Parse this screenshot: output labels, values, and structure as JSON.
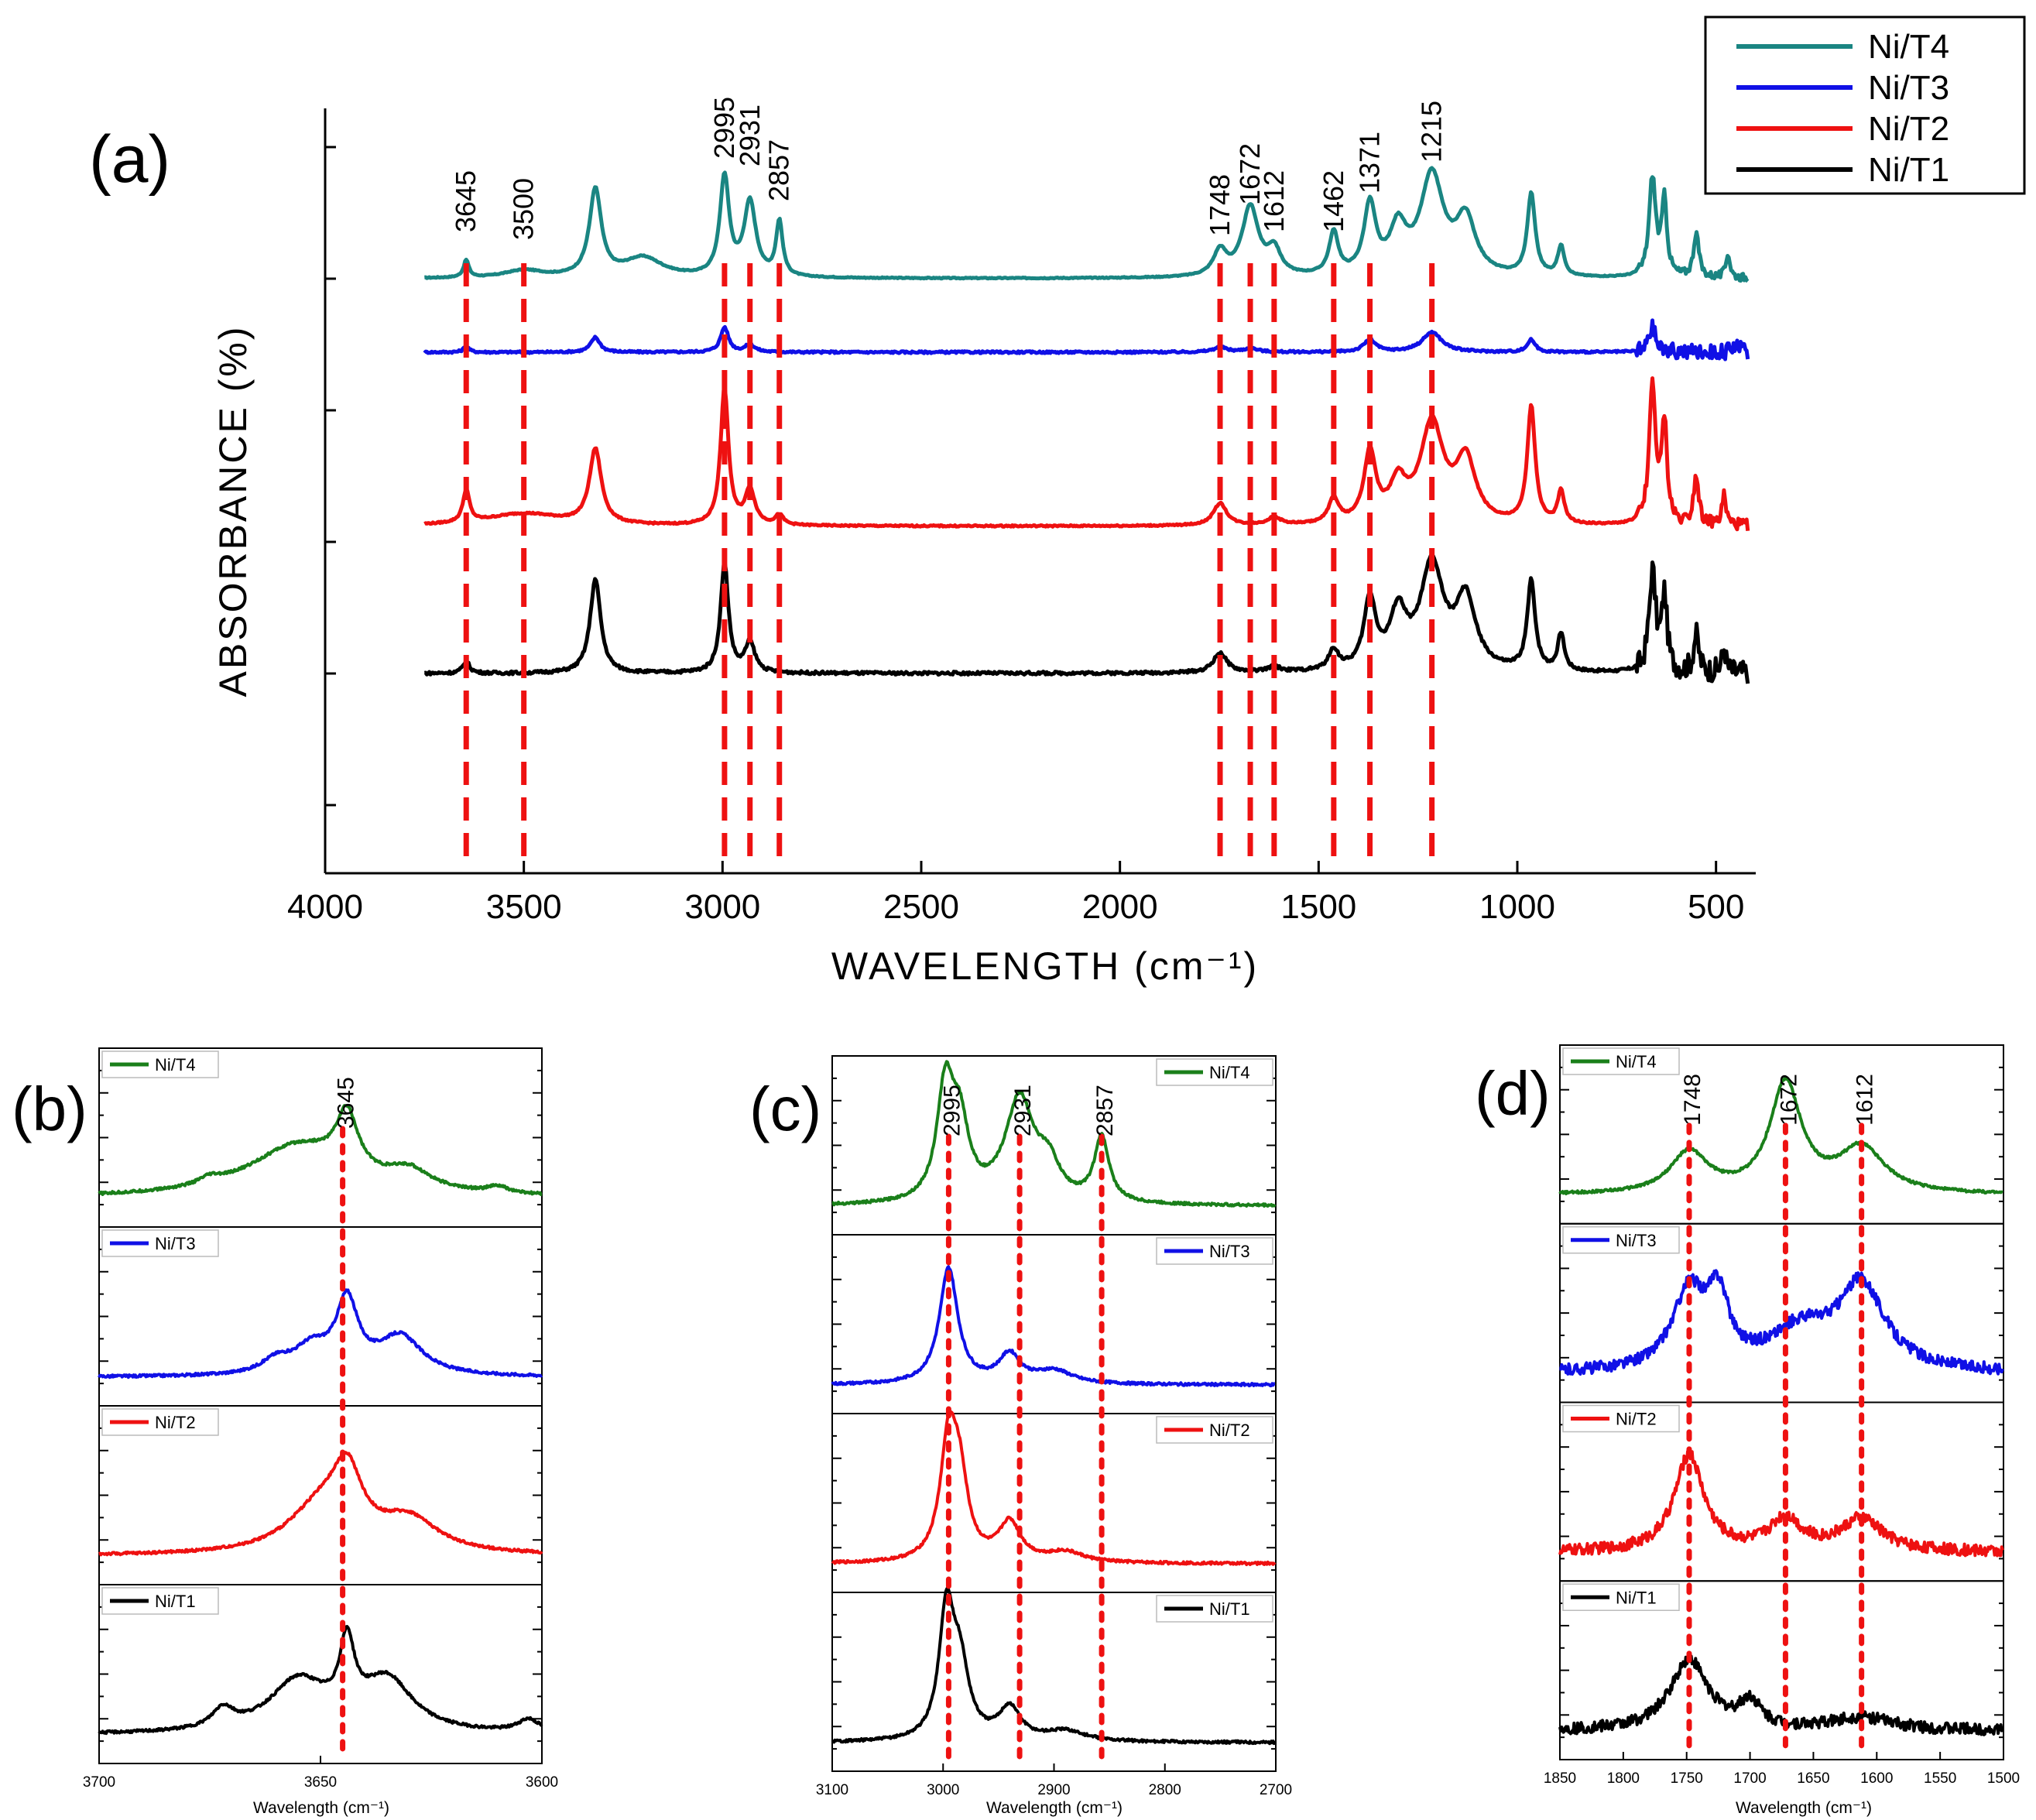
{
  "figure": {
    "panel_labels": [
      "(a)",
      "(b)",
      "(c)",
      "(d)"
    ]
  },
  "chart_data": [
    {
      "panel": "(a)",
      "type": "line",
      "title": "",
      "xlabel": "WAVELENGTH (cm⁻¹)",
      "ylabel": "ABSORBANCE (%)",
      "xlim": [
        4000,
        400
      ],
      "xticks": [
        4000,
        3500,
        3000,
        2500,
        2000,
        1500,
        1000,
        500
      ],
      "grid": false,
      "legend_position": "top-right",
      "legend": [
        "Ni/T4",
        "Ni/T3",
        "Ni/T2",
        "Ni/T1"
      ],
      "series": [
        {
          "name": "Ni/T4",
          "color": "#1a8582",
          "baseline": 0.75,
          "noise": 0.002,
          "peaks": [
            [
              3645,
              0.07,
              8
            ],
            [
              3500,
              0.03,
              60
            ],
            [
              3320,
              0.35,
              18
            ],
            [
              3200,
              0.08,
              60
            ],
            [
              2995,
              0.4,
              14
            ],
            [
              2931,
              0.3,
              18
            ],
            [
              2857,
              0.22,
              10
            ],
            [
              1748,
              0.1,
              20
            ],
            [
              1672,
              0.28,
              25
            ],
            [
              1612,
              0.1,
              20
            ],
            [
              1462,
              0.17,
              14
            ],
            [
              1371,
              0.28,
              18
            ],
            [
              1300,
              0.18,
              25
            ],
            [
              1215,
              0.4,
              35
            ],
            [
              1130,
              0.22,
              30
            ],
            [
              965,
              0.33,
              12
            ],
            [
              890,
              0.12,
              10
            ],
            [
              660,
              0.4,
              10
            ],
            [
              630,
              0.3,
              8
            ],
            [
              550,
              0.18,
              8
            ],
            [
              470,
              0.1,
              6
            ]
          ]
        },
        {
          "name": "Ni/T3",
          "color": "#1010e6",
          "baseline": 0.58,
          "noise": 0.004,
          "peaks": [
            [
              3645,
              0.025,
              8
            ],
            [
              3320,
              0.06,
              14
            ],
            [
              2995,
              0.1,
              12
            ],
            [
              2931,
              0.03,
              15
            ],
            [
              1748,
              0.02,
              20
            ],
            [
              1671,
              0.015,
              22
            ],
            [
              1371,
              0.05,
              18
            ],
            [
              1215,
              0.08,
              30
            ],
            [
              965,
              0.05,
              12
            ],
            [
              660,
              0.1,
              10
            ],
            [
              450,
              0.04,
              8
            ]
          ]
        },
        {
          "name": "Ni/T2",
          "color": "#ee1111",
          "baseline": 0.29,
          "noise": 0.003,
          "peaks": [
            [
              3645,
              0.13,
              10
            ],
            [
              3500,
              0.05,
              120
            ],
            [
              3320,
              0.3,
              18
            ],
            [
              2995,
              0.55,
              12
            ],
            [
              2931,
              0.14,
              15
            ],
            [
              2857,
              0.04,
              12
            ],
            [
              1748,
              0.09,
              20
            ],
            [
              1612,
              0.03,
              20
            ],
            [
              1462,
              0.1,
              15
            ],
            [
              1371,
              0.28,
              18
            ],
            [
              1300,
              0.15,
              25
            ],
            [
              1215,
              0.4,
              35
            ],
            [
              1130,
              0.25,
              30
            ],
            [
              965,
              0.47,
              12
            ],
            [
              890,
              0.13,
              10
            ],
            [
              660,
              0.55,
              10
            ],
            [
              630,
              0.4,
              8
            ],
            [
              550,
              0.2,
              8
            ],
            [
              480,
              0.12,
              6
            ]
          ]
        },
        {
          "name": "Ni/T1",
          "color": "#000000",
          "baseline": -0.05,
          "noise": 0.006,
          "peaks": [
            [
              3645,
              0.05,
              10
            ],
            [
              3320,
              0.38,
              16
            ],
            [
              2995,
              0.44,
              12
            ],
            [
              2931,
              0.12,
              15
            ],
            [
              1748,
              0.08,
              20
            ],
            [
              1612,
              0.02,
              20
            ],
            [
              1462,
              0.08,
              15
            ],
            [
              1371,
              0.28,
              18
            ],
            [
              1300,
              0.22,
              25
            ],
            [
              1215,
              0.42,
              35
            ],
            [
              1130,
              0.28,
              30
            ],
            [
              965,
              0.36,
              12
            ],
            [
              890,
              0.15,
              10
            ],
            [
              660,
              0.4,
              10
            ],
            [
              630,
              0.3,
              8
            ],
            [
              550,
              0.15,
              8
            ],
            [
              480,
              0.1,
              6
            ]
          ]
        }
      ],
      "annotations": [
        {
          "x": 3645,
          "label": "3645"
        },
        {
          "x": 3500,
          "label": "3500"
        },
        {
          "x": 2995,
          "label": "2995"
        },
        {
          "x": 2931,
          "label": "2931"
        },
        {
          "x": 2857,
          "label": "2857"
        },
        {
          "x": 1748,
          "label": "1748"
        },
        {
          "x": 1672,
          "label": "1672"
        },
        {
          "x": 1612,
          "label": "1612"
        },
        {
          "x": 1462,
          "label": "1462"
        },
        {
          "x": 1371,
          "label": "1371"
        },
        {
          "x": 1215,
          "label": "1215"
        }
      ]
    },
    {
      "panel": "(b)",
      "type": "line",
      "xlabel": "Wavelength (cm⁻¹)",
      "xlim": [
        3700,
        3600
      ],
      "xticks": [
        3700,
        3650,
        3600
      ],
      "grid": false,
      "legend_position": "top-left",
      "subplots": [
        {
          "name": "Ni/T4",
          "color": "#1a7f1a",
          "peaks": [
            [
              3655,
              0.4,
              14
            ],
            [
              3644,
              0.45,
              3
            ],
            [
              3630,
              0.15,
              6
            ],
            [
              3675,
              0.05,
              3
            ],
            [
              3610,
              0.05,
              3
            ]
          ]
        },
        {
          "name": "Ni/T3",
          "color": "#1010e6",
          "peaks": [
            [
              3644,
              0.55,
              3
            ],
            [
              3652,
              0.2,
              5
            ],
            [
              3632,
              0.3,
              6
            ],
            [
              3660,
              0.1,
              4
            ]
          ]
        },
        {
          "name": "Ni/T2",
          "color": "#ee1111",
          "peaks": [
            [
              3644,
              0.5,
              4
            ],
            [
              3650,
              0.35,
              9
            ],
            [
              3630,
              0.25,
              8
            ]
          ]
        },
        {
          "name": "Ni/T1",
          "color": "#000000",
          "peaks": [
            [
              3655,
              0.4,
              8
            ],
            [
              3644,
              0.55,
              2
            ],
            [
              3635,
              0.4,
              7
            ],
            [
              3672,
              0.15,
              3
            ],
            [
              3603,
              0.1,
              3
            ]
          ]
        }
      ],
      "annotations": [
        {
          "x": 3645,
          "label": "3645"
        }
      ]
    },
    {
      "panel": "(c)",
      "type": "line",
      "xlabel": "Wavelength (cm⁻¹)",
      "xlim": [
        3100,
        2700
      ],
      "xticks": [
        3100,
        3000,
        2900,
        2800,
        2700
      ],
      "grid": false,
      "legend_position": "top-right",
      "subplots": [
        {
          "name": "Ni/T4",
          "color": "#1a7f1a",
          "peaks": [
            [
              2998,
              0.85,
              9
            ],
            [
              2985,
              0.55,
              10
            ],
            [
              2931,
              0.8,
              16
            ],
            [
              2905,
              0.25,
              12
            ],
            [
              2857,
              0.5,
              8
            ]
          ]
        },
        {
          "name": "Ni/T3",
          "color": "#1010e6",
          "peaks": [
            [
              2995,
              0.9,
              10
            ],
            [
              2940,
              0.22,
              12
            ],
            [
              2900,
              0.1,
              20
            ]
          ]
        },
        {
          "name": "Ni/T2",
          "color": "#ee1111",
          "peaks": [
            [
              2995,
              0.9,
              9
            ],
            [
              2985,
              0.55,
              9
            ],
            [
              2940,
              0.3,
              12
            ],
            [
              2890,
              0.08,
              20
            ]
          ]
        },
        {
          "name": "Ni/T1",
          "color": "#000000",
          "peaks": [
            [
              2997,
              0.95,
              8
            ],
            [
              2985,
              0.55,
              10
            ],
            [
              2940,
              0.25,
              12
            ],
            [
              2890,
              0.08,
              22
            ]
          ]
        }
      ],
      "annotations": [
        {
          "x": 2995,
          "label": "2995"
        },
        {
          "x": 2931,
          "label": "2931"
        },
        {
          "x": 2857,
          "label": "2857"
        }
      ]
    },
    {
      "panel": "(d)",
      "type": "line",
      "xlabel": "Wavelength (cm⁻¹)",
      "xlim": [
        1850,
        1500
      ],
      "xticks": [
        1850,
        1800,
        1750,
        1700,
        1650,
        1600,
        1550,
        1500
      ],
      "grid": false,
      "legend_position": "top-left",
      "subplots": [
        {
          "name": "Ni/T4",
          "color": "#1a7f1a",
          "peaks": [
            [
              1748,
              0.32,
              18
            ],
            [
              1672,
              0.85,
              15
            ],
            [
              1612,
              0.35,
              22
            ]
          ]
        },
        {
          "name": "Ni/T3",
          "color": "#1010e6",
          "peaks": [
            [
              1748,
              0.6,
              16
            ],
            [
              1725,
              0.5,
              10
            ],
            [
              1612,
              0.65,
              22
            ],
            [
              1660,
              0.3,
              30
            ]
          ]
        },
        {
          "name": "Ni/T2",
          "color": "#ee1111",
          "peaks": [
            [
              1748,
              0.75,
              14
            ],
            [
              1672,
              0.25,
              15
            ],
            [
              1612,
              0.25,
              20
            ]
          ]
        },
        {
          "name": "Ni/T1",
          "color": "#000000",
          "peaks": [
            [
              1748,
              0.55,
              18
            ],
            [
              1700,
              0.2,
              10
            ],
            [
              1612,
              0.1,
              30
            ]
          ]
        }
      ],
      "annotations": [
        {
          "x": 1748,
          "label": "1748"
        },
        {
          "x": 1672,
          "label": "1672"
        },
        {
          "x": 1612,
          "label": "1612"
        }
      ]
    }
  ]
}
